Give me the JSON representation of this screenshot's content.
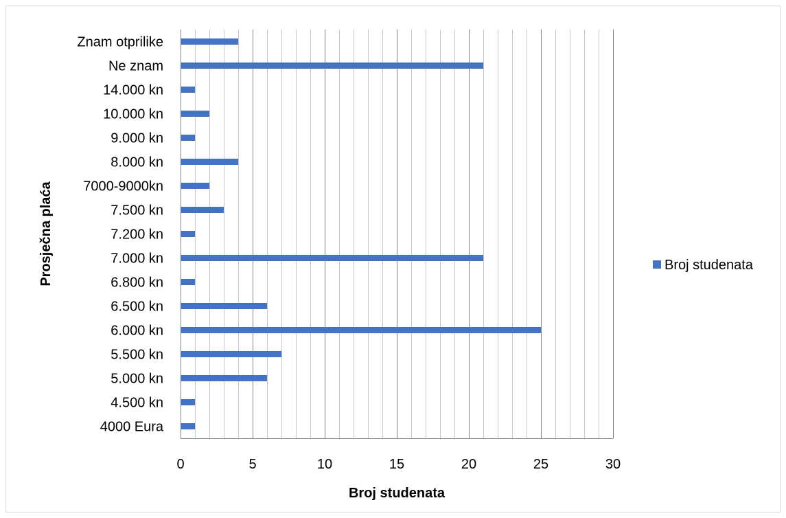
{
  "chart_data": {
    "type": "bar",
    "orientation": "horizontal",
    "categories": [
      "4000 Eura",
      "4.500 kn",
      "5.000 kn",
      "5.500 kn",
      "6.000 kn",
      "6.500 kn",
      "6.800 kn",
      "7.000 kn",
      "7.200 kn",
      "7.500 kn",
      "7000-9000kn",
      "8.000 kn",
      "9.000 kn",
      "10.000 kn",
      "14.000 kn",
      "Ne znam",
      "Znam otprilike"
    ],
    "series": [
      {
        "name": "Broj studenata",
        "values": [
          1,
          1,
          6,
          7,
          25,
          6,
          1,
          21,
          1,
          3,
          2,
          4,
          1,
          2,
          1,
          21,
          4
        ],
        "color": "#4472C4"
      }
    ],
    "xlabel": "Broj studenata",
    "ylabel": "Prosječna plaća",
    "xlim": [
      0,
      30
    ],
    "xticks": [
      0,
      5,
      10,
      15,
      20,
      25,
      30
    ],
    "minor_gridlines": true,
    "legend": "right"
  }
}
